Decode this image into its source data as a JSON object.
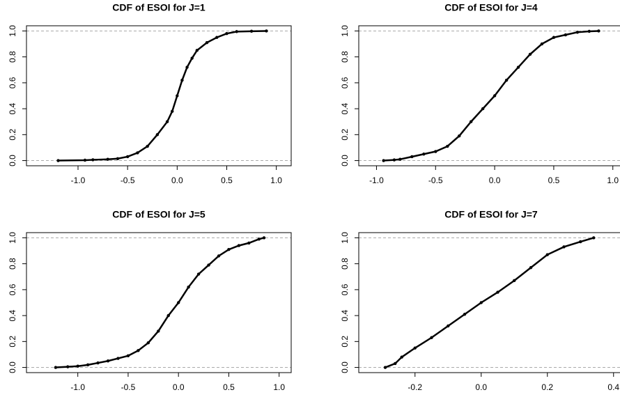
{
  "chart_data": [
    {
      "type": "ecdf",
      "title": "CDF of ESOI for J=1",
      "x": [
        -1.2,
        -0.93,
        -0.85,
        -0.7,
        -0.6,
        -0.5,
        -0.4,
        -0.3,
        -0.2,
        -0.1,
        -0.05,
        0,
        0.05,
        0.1,
        0.15,
        0.2,
        0.3,
        0.4,
        0.5,
        0.6,
        0.75,
        0.9
      ],
      "values": [
        0,
        0.003,
        0.006,
        0.01,
        0.015,
        0.03,
        0.06,
        0.11,
        0.2,
        0.3,
        0.38,
        0.5,
        0.62,
        0.72,
        0.79,
        0.85,
        0.91,
        0.95,
        0.98,
        0.995,
        0.998,
        1.0
      ],
      "color": "#000000",
      "hlines": [
        0,
        1
      ],
      "xlim": [
        -1.52,
        1.15
      ],
      "ylim": [
        -0.04,
        1.04
      ],
      "xticks": [
        {
          "value": -1,
          "label": "-1.0"
        },
        -0.5,
        {
          "value": 0,
          "label": "0.0"
        },
        0.5,
        {
          "value": 1,
          "label": "1.0"
        }
      ],
      "yticks": [
        {
          "value": 0,
          "label": "0.0"
        },
        0.2,
        0.4,
        0.6,
        0.8,
        {
          "value": 1,
          "label": "1.0"
        }
      ]
    },
    {
      "type": "ecdf",
      "title": "CDF of ESOI for J=4",
      "x": [
        -0.94,
        -0.85,
        -0.8,
        -0.7,
        -0.6,
        -0.5,
        -0.4,
        -0.3,
        -0.2,
        -0.1,
        0,
        0.1,
        0.2,
        0.3,
        0.4,
        0.5,
        0.6,
        0.7,
        0.8,
        0.88
      ],
      "values": [
        0,
        0.005,
        0.01,
        0.03,
        0.05,
        0.07,
        0.11,
        0.19,
        0.3,
        0.4,
        0.5,
        0.62,
        0.72,
        0.82,
        0.9,
        0.95,
        0.97,
        0.99,
        0.997,
        1.0
      ],
      "color": "#000000",
      "hlines": [
        0,
        1
      ],
      "xlim": [
        -1.15,
        1.09
      ],
      "ylim": [
        -0.04,
        1.04
      ],
      "xticks": [
        {
          "value": -1,
          "label": "-1.0"
        },
        -0.5,
        {
          "value": 0,
          "label": "0.0"
        },
        0.5,
        {
          "value": 1,
          "label": "1.0"
        }
      ],
      "yticks": [
        {
          "value": 0,
          "label": "0.0"
        },
        0.2,
        0.4,
        0.6,
        0.8,
        {
          "value": 1,
          "label": "1.0"
        }
      ]
    },
    {
      "type": "ecdf",
      "title": "CDF of ESOI for J=5",
      "x": [
        -1.22,
        -1.1,
        -1.0,
        -0.9,
        -0.8,
        -0.7,
        -0.6,
        -0.5,
        -0.4,
        -0.3,
        -0.2,
        -0.1,
        0,
        0.1,
        0.2,
        0.3,
        0.4,
        0.5,
        0.6,
        0.7,
        0.8,
        0.85
      ],
      "values": [
        0,
        0.005,
        0.01,
        0.02,
        0.035,
        0.05,
        0.07,
        0.09,
        0.13,
        0.19,
        0.28,
        0.4,
        0.5,
        0.62,
        0.72,
        0.79,
        0.86,
        0.91,
        0.94,
        0.96,
        0.99,
        1.0
      ],
      "color": "#000000",
      "hlines": [
        0,
        1
      ],
      "xlim": [
        -1.51,
        1.12
      ],
      "ylim": [
        -0.04,
        1.04
      ],
      "xticks": [
        {
          "value": -1,
          "label": "-1.0"
        },
        -0.5,
        {
          "value": 0,
          "label": "0.0"
        },
        0.5,
        {
          "value": 1,
          "label": "1.0"
        }
      ],
      "yticks": [
        {
          "value": 0,
          "label": "0.0"
        },
        0.2,
        0.4,
        0.6,
        0.8,
        {
          "value": 1,
          "label": "1.0"
        }
      ]
    },
    {
      "type": "ecdf",
      "title": "CDF of ESOI for J=7",
      "x": [
        -0.29,
        -0.26,
        -0.24,
        -0.2,
        -0.15,
        -0.1,
        -0.05,
        0,
        0.05,
        0.1,
        0.15,
        0.2,
        0.25,
        0.3,
        0.34
      ],
      "values": [
        0,
        0.03,
        0.08,
        0.15,
        0.23,
        0.32,
        0.41,
        0.5,
        0.58,
        0.67,
        0.77,
        0.87,
        0.93,
        0.97,
        1.0
      ],
      "color": "#000000",
      "hlines": [
        0,
        1
      ],
      "xlim": [
        -0.37,
        0.43
      ],
      "ylim": [
        -0.04,
        1.04
      ],
      "xticks": [
        -0.2,
        {
          "value": 0,
          "label": "0.0"
        },
        0.2,
        0.4
      ],
      "yticks": [
        {
          "value": 0,
          "label": "0.0"
        },
        0.2,
        0.4,
        0.6,
        0.8,
        {
          "value": 1,
          "label": "1.0"
        }
      ]
    }
  ]
}
